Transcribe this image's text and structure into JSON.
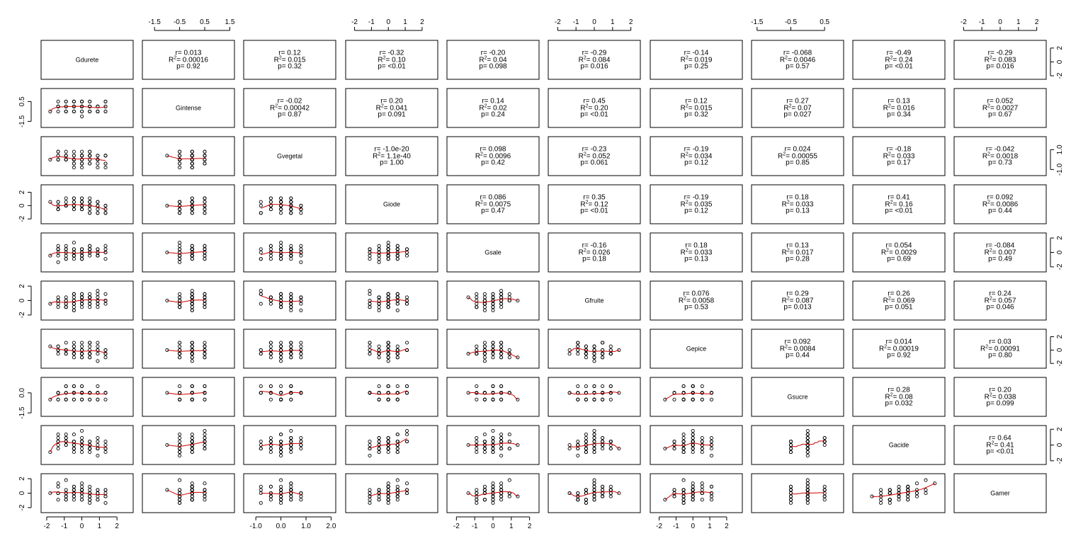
{
  "chart_data": {
    "type": "scatter-matrix",
    "title": "",
    "variables": [
      "Gdurete",
      "Gintense",
      "Gvegetal",
      "Giode",
      "Gsale",
      "Gfruite",
      "Gepice",
      "Gsucre",
      "Gacide",
      "Gamer"
    ],
    "upper_panels": "correlation statistics (r, R², p)",
    "lower_panels": "scatter plot with red loess smoother",
    "axis_ranges": {
      "Gdurete": [
        -2.2,
        2.8
      ],
      "Gintense": [
        -1.9,
        1.6
      ],
      "Gvegetal": [
        -1.4,
        2.1
      ],
      "Giode": [
        -2.4,
        2.8
      ],
      "Gsale": [
        -2.4,
        2.4
      ],
      "Gfruite": [
        -2.4,
        2.4
      ],
      "Gepice": [
        -2.4,
        2.8
      ],
      "Gsucre": [
        -1.6,
        1.0
      ],
      "Gacide": [
        -2.2,
        2.2
      ],
      "Gamer": [
        -2.4,
        2.4
      ]
    },
    "axis_ticks": {
      "bottom": {
        "Gdurete": [
          "-2",
          "-1",
          "0",
          "1",
          "2"
        ],
        "Gvegetal": [
          "-1.0",
          "0.0",
          "1.0",
          "2.0"
        ],
        "Gsale": [
          "-2",
          "-1",
          "0",
          "1",
          "2"
        ],
        "Gepice": [
          "-2",
          "-1",
          "0",
          "1",
          "2"
        ]
      },
      "top": {
        "Gintense": [
          "-1.5",
          "-0.5",
          "0.5",
          "1.5"
        ],
        "Giode": [
          "-2",
          "-1",
          "0",
          "1",
          "2"
        ],
        "Gfruite": [
          "-2",
          "-1",
          "0",
          "1",
          "2"
        ],
        "Gsucre": [
          "-1.5",
          "-0.5",
          "0.5"
        ],
        "Gamer": [
          "-2",
          "-1",
          "0",
          "1",
          "2"
        ]
      },
      "left": {
        "Gintense": [
          "-1.5",
          "0.5"
        ],
        "Giode": [
          "-2",
          "0",
          "2"
        ],
        "Gfruite": [
          "-2",
          "0",
          "2"
        ],
        "Gsucre": [
          "-1.5",
          "0.0"
        ],
        "Gamer": [
          "-2",
          "0",
          "2"
        ]
      },
      "right": {
        "Gdurete": [
          "-2",
          "0",
          "2"
        ],
        "Gvegetal": [
          "-1.0",
          "1.0"
        ],
        "Gsale": [
          "-2",
          "0",
          "2"
        ],
        "Gepice": [
          "-2",
          "0",
          "2"
        ],
        "Gacide": [
          "-2",
          "0",
          "2"
        ]
      }
    },
    "correlations": [
      {
        "row": "Gdurete",
        "col": "Gintense",
        "r": "r= 0.013",
        "r2": "= 0.00016",
        "p": "p= 0.92"
      },
      {
        "row": "Gdurete",
        "col": "Gvegetal",
        "r": "r= 0.12",
        "r2": "= 0.015",
        "p": "p= 0.32"
      },
      {
        "row": "Gdurete",
        "col": "Giode",
        "r": "r= -0.32",
        "r2": "= 0.10",
        "p": "p= <0.01"
      },
      {
        "row": "Gdurete",
        "col": "Gsale",
        "r": "r= -0.20",
        "r2": "= 0.04",
        "p": "p= 0.098"
      },
      {
        "row": "Gdurete",
        "col": "Gfruite",
        "r": "r= -0.29",
        "r2": "= 0.084",
        "p": "p= 0.016"
      },
      {
        "row": "Gdurete",
        "col": "Gepice",
        "r": "r= -0.14",
        "r2": "= 0.019",
        "p": "p= 0.25"
      },
      {
        "row": "Gdurete",
        "col": "Gsucre",
        "r": "r= -0.068",
        "r2": "= 0.0046",
        "p": "p= 0.57"
      },
      {
        "row": "Gdurete",
        "col": "Gacide",
        "r": "r= -0.49",
        "r2": "= 0.24",
        "p": "p= <0.01"
      },
      {
        "row": "Gdurete",
        "col": "Gamer",
        "r": "r= -0.29",
        "r2": "= 0.083",
        "p": "p= 0.016"
      },
      {
        "row": "Gintense",
        "col": "Gvegetal",
        "r": "r= -0.02",
        "r2": "= 0.00042",
        "p": "p= 0.87"
      },
      {
        "row": "Gintense",
        "col": "Giode",
        "r": "r= 0.20",
        "r2": "= 0.041",
        "p": "p= 0.091"
      },
      {
        "row": "Gintense",
        "col": "Gsale",
        "r": "r= 0.14",
        "r2": "= 0.02",
        "p": "p= 0.24"
      },
      {
        "row": "Gintense",
        "col": "Gfruite",
        "r": "r= 0.45",
        "r2": "= 0.20",
        "p": "p= <0.01"
      },
      {
        "row": "Gintense",
        "col": "Gepice",
        "r": "r= 0.12",
        "r2": "= 0.015",
        "p": "p= 0.32"
      },
      {
        "row": "Gintense",
        "col": "Gsucre",
        "r": "r= 0.27",
        "r2": "= 0.07",
        "p": "p= 0.027"
      },
      {
        "row": "Gintense",
        "col": "Gacide",
        "r": "r= 0.13",
        "r2": "= 0.016",
        "p": "p= 0.34"
      },
      {
        "row": "Gintense",
        "col": "Gamer",
        "r": "r= 0.052",
        "r2": "= 0.0027",
        "p": "p= 0.67"
      },
      {
        "row": "Gvegetal",
        "col": "Giode",
        "r": "r= -1.0e-20",
        "r2": "= 1.1e-40",
        "p": "p= 1.00"
      },
      {
        "row": "Gvegetal",
        "col": "Gsale",
        "r": "r= 0.098",
        "r2": "= 0.0096",
        "p": "p= 0.42"
      },
      {
        "row": "Gvegetal",
        "col": "Gfruite",
        "r": "r= -0.23",
        "r2": "= 0.052",
        "p": "p= 0.061"
      },
      {
        "row": "Gvegetal",
        "col": "Gepice",
        "r": "r= -0.19",
        "r2": "= 0.034",
        "p": "p= 0.12"
      },
      {
        "row": "Gvegetal",
        "col": "Gsucre",
        "r": "r= 0.024",
        "r2": "= 0.00055",
        "p": "p= 0.85"
      },
      {
        "row": "Gvegetal",
        "col": "Gacide",
        "r": "r= -0.18",
        "r2": "= 0.033",
        "p": "p= 0.17"
      },
      {
        "row": "Gvegetal",
        "col": "Gamer",
        "r": "r= -0.042",
        "r2": "= 0.0018",
        "p": "p= 0.73"
      },
      {
        "row": "Giode",
        "col": "Gsale",
        "r": "r= 0.086",
        "r2": "= 0.0075",
        "p": "p= 0.47"
      },
      {
        "row": "Giode",
        "col": "Gfruite",
        "r": "r= 0.35",
        "r2": "= 0.12",
        "p": "p= <0.01"
      },
      {
        "row": "Giode",
        "col": "Gepice",
        "r": "r= -0.19",
        "r2": "= 0.035",
        "p": "p= 0.12"
      },
      {
        "row": "Giode",
        "col": "Gsucre",
        "r": "r= 0.18",
        "r2": "= 0.033",
        "p": "p= 0.13"
      },
      {
        "row": "Giode",
        "col": "Gacide",
        "r": "r= 0.41",
        "r2": "= 0.16",
        "p": "p= <0.01"
      },
      {
        "row": "Giode",
        "col": "Gamer",
        "r": "r= 0.092",
        "r2": "= 0.0086",
        "p": "p= 0.44"
      },
      {
        "row": "Gsale",
        "col": "Gfruite",
        "r": "r= -0.16",
        "r2": "= 0.026",
        "p": "p= 0.18"
      },
      {
        "row": "Gsale",
        "col": "Gepice",
        "r": "r= 0.18",
        "r2": "= 0.033",
        "p": "p= 0.13"
      },
      {
        "row": "Gsale",
        "col": "Gsucre",
        "r": "r= 0.13",
        "r2": "= 0.017",
        "p": "p= 0.28"
      },
      {
        "row": "Gsale",
        "col": "Gacide",
        "r": "r= 0.054",
        "r2": "= 0.0029",
        "p": "p= 0.69"
      },
      {
        "row": "Gsale",
        "col": "Gamer",
        "r": "r= -0.084",
        "r2": "= 0.007",
        "p": "p= 0.49"
      },
      {
        "row": "Gfruite",
        "col": "Gepice",
        "r": "r= 0.076",
        "r2": "= 0.0058",
        "p": "p= 0.53"
      },
      {
        "row": "Gfruite",
        "col": "Gsucre",
        "r": "r= 0.29",
        "r2": "= 0.087",
        "p": "p= 0.013"
      },
      {
        "row": "Gfruite",
        "col": "Gacide",
        "r": "r= 0.26",
        "r2": "= 0.069",
        "p": "p= 0.051"
      },
      {
        "row": "Gfruite",
        "col": "Gamer",
        "r": "r= 0.24",
        "r2": "= 0.057",
        "p": "p= 0.046"
      },
      {
        "row": "Gepice",
        "col": "Gsucre",
        "r": "r= 0.092",
        "r2": "= 0.0084",
        "p": "p= 0.44"
      },
      {
        "row": "Gepice",
        "col": "Gacide",
        "r": "r= 0.014",
        "r2": "= 0.00019",
        "p": "p= 0.92"
      },
      {
        "row": "Gepice",
        "col": "Gamer",
        "r": "r= 0.03",
        "r2": "= 0.00091",
        "p": "p= 0.80"
      },
      {
        "row": "Gsucre",
        "col": "Gacide",
        "r": "r= 0.28",
        "r2": "= 0.08",
        "p": "p= 0.032"
      },
      {
        "row": "Gsucre",
        "col": "Gamer",
        "r": "r= 0.20",
        "r2": "= 0.038",
        "p": "p= 0.099"
      },
      {
        "row": "Gacide",
        "col": "Gamer",
        "r": "r= 0.64",
        "r2": "= 0.41",
        "p": "p= <0.01"
      }
    ],
    "grid": false,
    "smooth_color": "#cc0000",
    "point_color": "#000000"
  }
}
